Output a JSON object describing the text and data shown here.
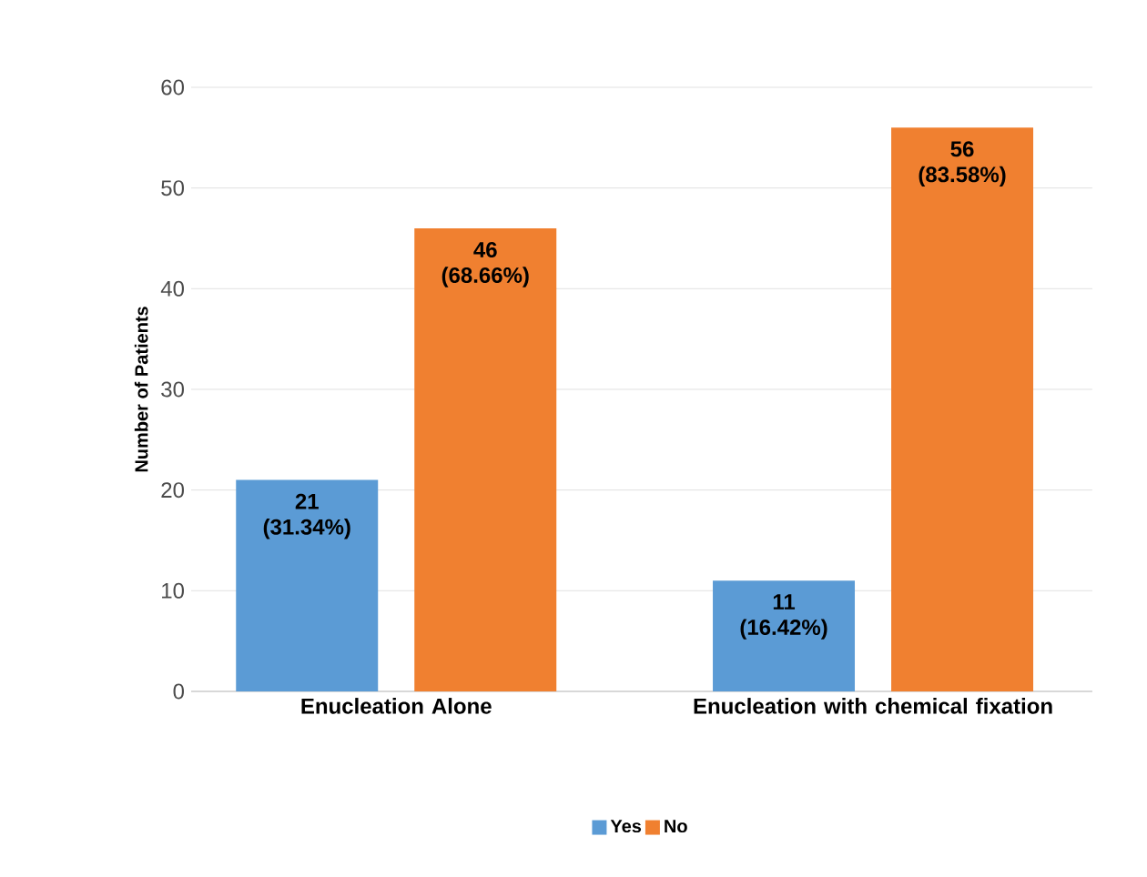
{
  "chart_data": {
    "type": "bar",
    "ylabel": "Number of Patients",
    "categories": [
      "Enucleation Alone",
      "Enucleation with chemical fixation"
    ],
    "series": [
      {
        "name": "Yes",
        "color": "#5b9bd5",
        "values": [
          21,
          11
        ],
        "value_labels": [
          "21 (31.34%)",
          "11 (16.42%)"
        ]
      },
      {
        "name": "No",
        "color": "#f08030",
        "values": [
          46,
          56
        ],
        "value_labels": [
          "46 (68.66%)",
          "56 (83.58%)"
        ]
      }
    ],
    "ylim": [
      0,
      60
    ],
    "yticks": [
      0,
      10,
      20,
      30,
      40,
      50,
      60
    ],
    "grid": "y",
    "legend": "bottom"
  }
}
